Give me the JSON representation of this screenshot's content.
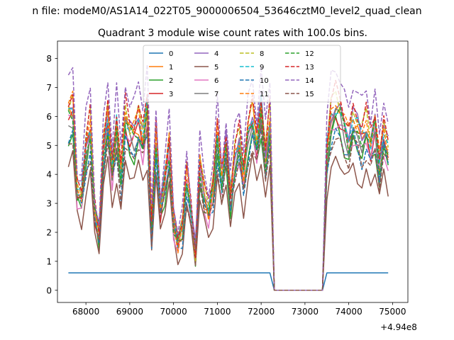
{
  "figure": {
    "suptitle": "n file: modeM0/AS1A14_022T05_9000006504_53646cztM0_level2_quad_clean",
    "title": "Quadrant 3 module wise count rates with 100.0s bins."
  },
  "chart_data": {
    "type": "line",
    "title": "Quadrant 3 module wise count rates with 100.0s bins.",
    "xlabel": "",
    "ylabel": "",
    "x_offset_label": "+4.94e8",
    "xlim": [
      67350,
      75350
    ],
    "ylim": [
      -0.42,
      8.6
    ],
    "xticks": [
      68000,
      69000,
      70000,
      71000,
      72000,
      73000,
      74000,
      75000
    ],
    "xtick_labels": [
      "68000",
      "69000",
      "70000",
      "71000",
      "72000",
      "73000",
      "74000",
      "75000"
    ],
    "yticks": [
      0,
      1,
      2,
      3,
      4,
      5,
      6,
      7,
      8
    ],
    "ytick_labels": [
      "0",
      "1",
      "2",
      "3",
      "4",
      "5",
      "6",
      "7",
      "8"
    ],
    "x": [
      67600,
      67700,
      67800,
      67900,
      68000,
      68100,
      68200,
      68300,
      68400,
      68500,
      68600,
      68700,
      68800,
      68900,
      69000,
      69100,
      69200,
      69300,
      69400,
      69500,
      69600,
      69700,
      69800,
      69900,
      70000,
      70100,
      70200,
      70300,
      70400,
      70500,
      70600,
      70700,
      70800,
      70900,
      71000,
      71100,
      71200,
      71300,
      71400,
      71500,
      71600,
      71700,
      71800,
      71900,
      72000,
      72100,
      72200,
      72300,
      72400,
      72500,
      72600,
      72700,
      72800,
      72900,
      73000,
      73100,
      73200,
      73300,
      73400,
      73500,
      73600,
      73700,
      73800,
      73900,
      74000,
      74100,
      74200,
      74300,
      74400,
      74500,
      74600,
      74700,
      74800,
      74900
    ],
    "base_profile": [
      5.6,
      5.8,
      3.2,
      3.0,
      4.5,
      5.2,
      2.5,
      1.8,
      4.5,
      5.5,
      3.8,
      5.2,
      3.6,
      5.5,
      5.0,
      5.0,
      5.4,
      4.8,
      5.8,
      2.0,
      4.8,
      2.6,
      3.5,
      4.6,
      2.2,
      1.5,
      2.0,
      3.6,
      2.5,
      1.2,
      4.0,
      3.0,
      2.5,
      3.2,
      5.0,
      3.4,
      4.6,
      3.0,
      4.2,
      4.7,
      3.6,
      5.0,
      5.6,
      4.6,
      5.8,
      4.2,
      5.4,
      0.0,
      0.0,
      0.0,
      0.0,
      0.0,
      0.0,
      0.0,
      0.0,
      0.0,
      0.0,
      0.0,
      0.0,
      4.4,
      5.5,
      5.8,
      5.6,
      5.2,
      4.8,
      5.4,
      5.1,
      4.8,
      5.2,
      4.6,
      5.3,
      4.0,
      5.0,
      4.4
    ],
    "legend": {
      "placement": "top-center",
      "columns": 4
    },
    "series": [
      {
        "name": "0",
        "style": "solid",
        "color": "#1f77b4",
        "scale": 0.0,
        "jitter": 0.0
      },
      {
        "name": "1",
        "style": "solid",
        "color": "#ff7f0e",
        "scale": 1.08,
        "jitter": 0.3
      },
      {
        "name": "2",
        "style": "solid",
        "color": "#2ca02c",
        "scale": 0.96,
        "jitter": 0.3
      },
      {
        "name": "3",
        "style": "solid",
        "color": "#d62728",
        "scale": 1.05,
        "jitter": 0.25
      },
      {
        "name": "4",
        "style": "solid",
        "color": "#9467bd",
        "scale": 1.12,
        "jitter": 0.3
      },
      {
        "name": "5",
        "style": "solid",
        "color": "#8c564b",
        "scale": 0.78,
        "jitter": 0.25
      },
      {
        "name": "6",
        "style": "solid",
        "color": "#e377c2",
        "scale": 1.0,
        "jitter": 0.3
      },
      {
        "name": "7",
        "style": "solid",
        "color": "#7f7f7f",
        "scale": 1.03,
        "jitter": 0.3
      },
      {
        "name": "8",
        "style": "dashed",
        "color": "#bcbd22",
        "scale": 1.15,
        "jitter": 0.25
      },
      {
        "name": "9",
        "style": "dashed",
        "color": "#17becf",
        "scale": 1.1,
        "jitter": 0.25
      },
      {
        "name": "10",
        "style": "dashed",
        "color": "#1f77b4",
        "scale": 0.95,
        "jitter": 0.3
      },
      {
        "name": "11",
        "style": "dashed",
        "color": "#ff7f0e",
        "scale": 1.12,
        "jitter": 0.25
      },
      {
        "name": "12",
        "style": "dashed",
        "color": "#2ca02c",
        "scale": 1.05,
        "jitter": 0.3
      },
      {
        "name": "13",
        "style": "dashed",
        "color": "#d62728",
        "scale": 1.18,
        "jitter": 0.25
      },
      {
        "name": "14",
        "style": "dashed",
        "color": "#9467bd",
        "scale": 1.32,
        "jitter": 0.25
      },
      {
        "name": "15",
        "style": "dashed",
        "color": "#8c564b",
        "scale": 0.92,
        "jitter": 0.3
      }
    ]
  }
}
